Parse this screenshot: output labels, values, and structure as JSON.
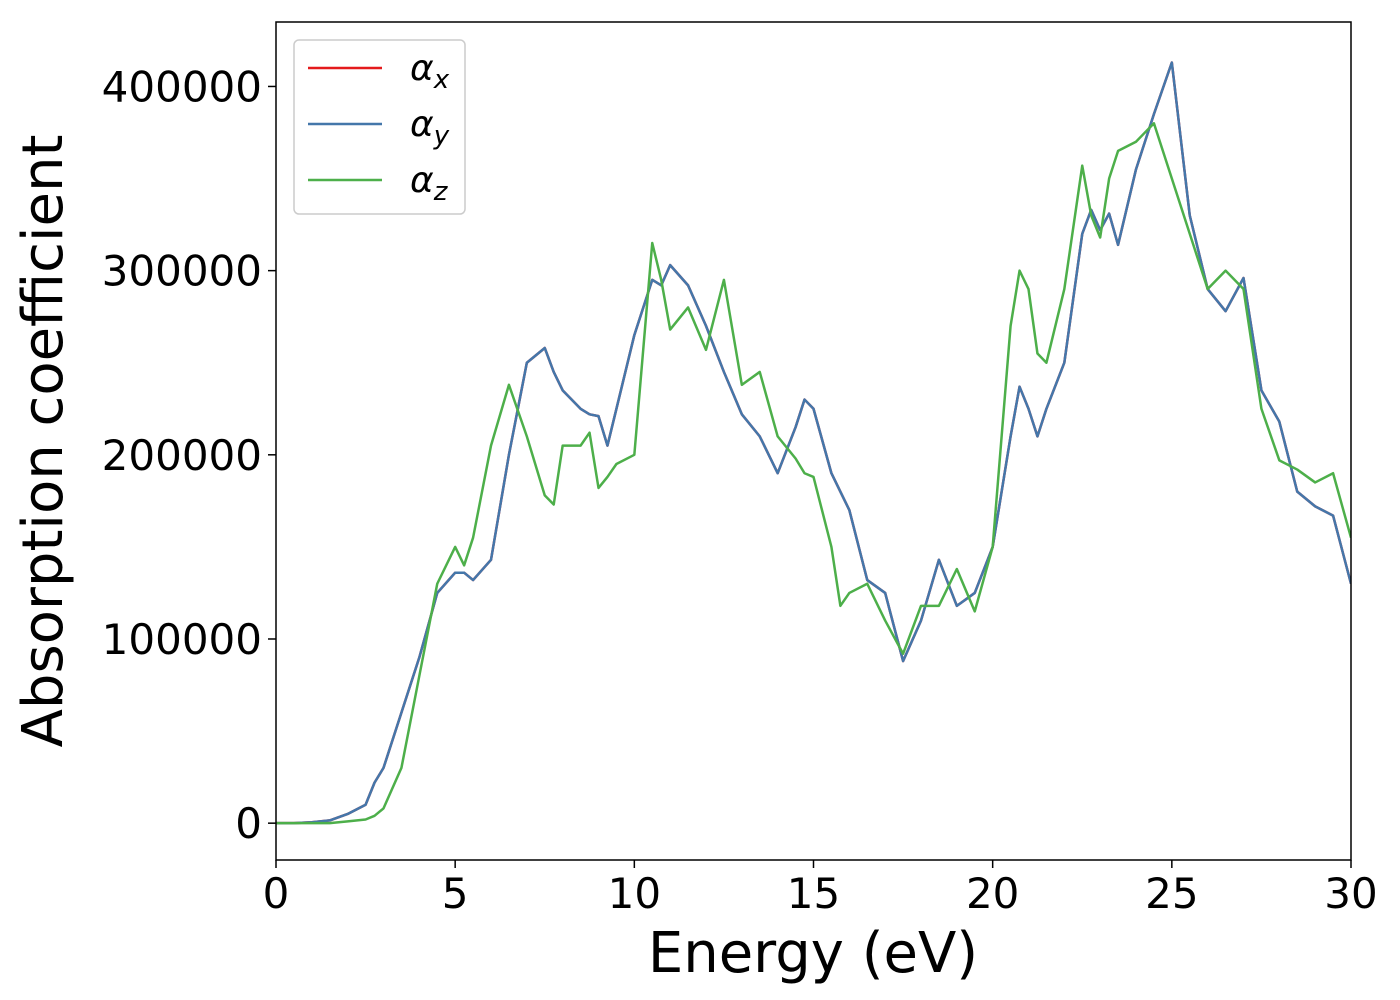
{
  "chart_data": {
    "type": "line",
    "xlabel": "Energy (eV)",
    "ylabel": "Absorption coefficient",
    "xlim": [
      0,
      30
    ],
    "ylim": [
      -20000,
      435000
    ],
    "xticks": [
      0,
      5,
      10,
      15,
      20,
      25,
      30
    ],
    "yticks": [
      0,
      100000,
      200000,
      300000,
      400000
    ],
    "legend": "upper left",
    "grid": false,
    "x": [
      0,
      0.5,
      1,
      1.5,
      2,
      2.5,
      2.75,
      3,
      3.5,
      4,
      4.5,
      5,
      5.25,
      5.5,
      6,
      6.5,
      7,
      7.5,
      7.75,
      8,
      8.5,
      8.75,
      9,
      9.25,
      9.5,
      10,
      10.5,
      10.75,
      11,
      11.5,
      12,
      12.5,
      13,
      13.5,
      14,
      14.5,
      14.75,
      15,
      15.5,
      15.75,
      16,
      16.5,
      17,
      17.5,
      18,
      18.5,
      19,
      19.5,
      20,
      20.5,
      20.75,
      21,
      21.25,
      21.5,
      22,
      22.5,
      22.75,
      23,
      23.25,
      23.5,
      24,
      24.5,
      25,
      25.5,
      26,
      26.5,
      27,
      27.5,
      28,
      28.5,
      29,
      29.5,
      30
    ],
    "series": [
      {
        "name": "αx",
        "color": "#e41a1c",
        "values": [
          0,
          0,
          500,
          1500,
          5000,
          10000,
          22000,
          30000,
          60000,
          90000,
          125000,
          136000,
          136000,
          132000,
          143000,
          200000,
          250000,
          258000,
          245000,
          235000,
          225000,
          222000,
          221000,
          205000,
          225000,
          265000,
          295000,
          292000,
          303000,
          292000,
          270000,
          245000,
          222000,
          210000,
          190000,
          215000,
          230000,
          225000,
          190000,
          180000,
          170000,
          132000,
          125000,
          88000,
          110000,
          143000,
          118000,
          125000,
          150000,
          210000,
          237000,
          225000,
          210000,
          225000,
          250000,
          320000,
          333000,
          322000,
          331000,
          314000,
          355000,
          385000,
          413000,
          330000,
          290000,
          278000,
          296000,
          235000,
          218000,
          180000,
          172000,
          167000,
          130000
        ]
      },
      {
        "name": "αy",
        "color": "#4477aa",
        "values": [
          0,
          0,
          500,
          1500,
          5000,
          10000,
          22000,
          30000,
          60000,
          90000,
          125000,
          136000,
          136000,
          132000,
          143000,
          200000,
          250000,
          258000,
          245000,
          235000,
          225000,
          222000,
          221000,
          205000,
          225000,
          265000,
          295000,
          292000,
          303000,
          292000,
          270000,
          245000,
          222000,
          210000,
          190000,
          215000,
          230000,
          225000,
          190000,
          180000,
          170000,
          132000,
          125000,
          88000,
          110000,
          143000,
          118000,
          125000,
          150000,
          210000,
          237000,
          225000,
          210000,
          225000,
          250000,
          320000,
          333000,
          322000,
          331000,
          314000,
          355000,
          385000,
          413000,
          330000,
          290000,
          278000,
          296000,
          235000,
          218000,
          180000,
          172000,
          167000,
          130000
        ]
      },
      {
        "name": "αz",
        "color": "#4daf4a",
        "values": [
          0,
          0,
          0,
          0,
          1000,
          2000,
          4000,
          8000,
          30000,
          80000,
          130000,
          150000,
          140000,
          155000,
          205000,
          238000,
          210000,
          178000,
          173000,
          205000,
          205000,
          212000,
          182000,
          188000,
          195000,
          200000,
          315000,
          295000,
          268000,
          280000,
          257000,
          295000,
          238000,
          245000,
          210000,
          198000,
          190000,
          188000,
          150000,
          118000,
          125000,
          130000,
          110000,
          92000,
          118000,
          118000,
          138000,
          115000,
          150000,
          270000,
          300000,
          290000,
          255000,
          250000,
          290000,
          357000,
          330000,
          318000,
          350000,
          365000,
          370000,
          380000,
          350000,
          320000,
          290000,
          300000,
          290000,
          225000,
          197000,
          192000,
          185000,
          190000,
          155000
        ]
      }
    ]
  }
}
